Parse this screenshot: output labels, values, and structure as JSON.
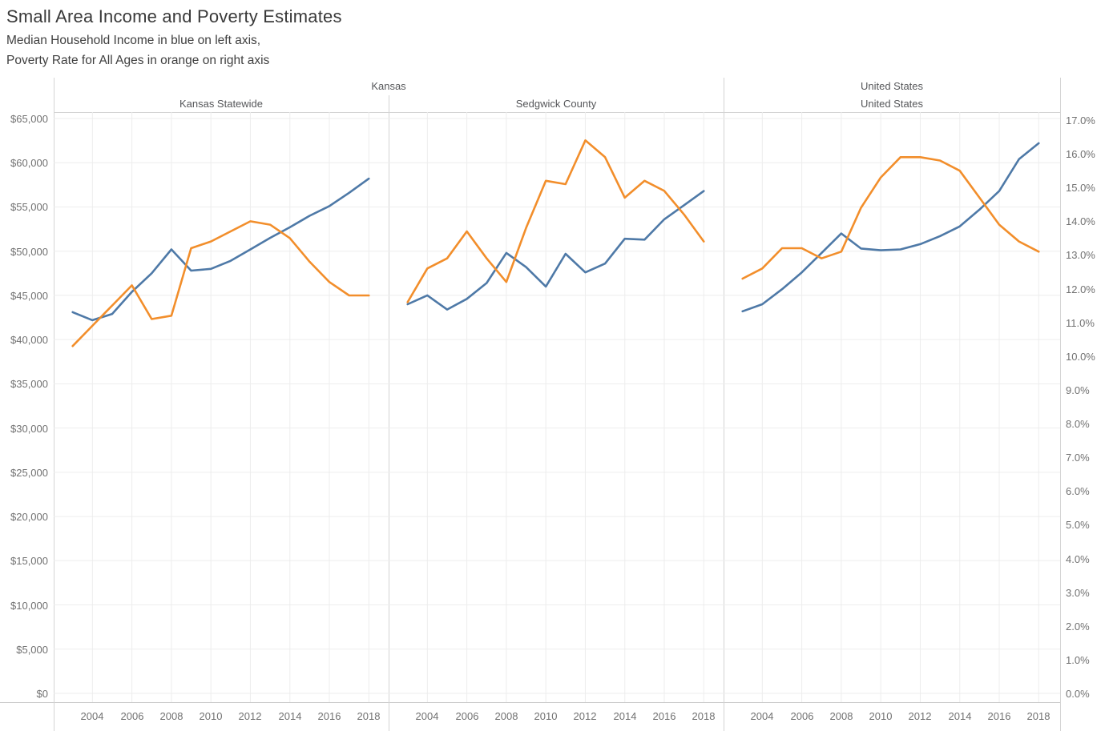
{
  "title": "Small Area Income and Poverty Estimates",
  "subtitle_line1": "Median Household Income in blue on left axis,",
  "subtitle_line2": "Poverty Rate for All Ages in orange on right axis",
  "headers": {
    "groups": [
      "Kansas",
      "United States"
    ],
    "panels": [
      "Kansas Statewide",
      "Sedgwick County",
      "United States"
    ]
  },
  "colors": {
    "income_blue": "#4e79a7",
    "poverty_orange": "#f28e2b",
    "gridline": "#ededed",
    "border": "#d4d4d4",
    "axis_line": "#c9c9c9",
    "tick_text": "#717171"
  },
  "chart_data": {
    "type": "line",
    "title": "Small Area Income and Poverty Estimates",
    "x": [
      2003,
      2004,
      2005,
      2006,
      2007,
      2008,
      2009,
      2010,
      2011,
      2012,
      2013,
      2014,
      2015,
      2016,
      2017,
      2018
    ],
    "x_ticks": [
      2004,
      2006,
      2008,
      2010,
      2012,
      2014,
      2016,
      2018
    ],
    "grid": true,
    "legend": "none",
    "left_axis": {
      "title": "Median Household Income",
      "min": 0,
      "max": 65000,
      "tick_step": 5000,
      "tick_labels": [
        "$0",
        "$5,000",
        "$10,000",
        "$15,000",
        "$20,000",
        "$25,000",
        "$30,000",
        "$35,000",
        "$40,000",
        "$45,000",
        "$50,000",
        "$55,000",
        "$60,000",
        "$65,000"
      ]
    },
    "right_axis": {
      "title": "Poverty Rate for All Ages",
      "min": 0,
      "max": 17,
      "tick_step": 1,
      "tick_labels": [
        "0.0%",
        "1.0%",
        "2.0%",
        "3.0%",
        "4.0%",
        "5.0%",
        "6.0%",
        "7.0%",
        "8.0%",
        "9.0%",
        "10.0%",
        "11.0%",
        "12.0%",
        "13.0%",
        "14.0%",
        "15.0%",
        "16.0%",
        "17.0%"
      ]
    },
    "series_colors": {
      "median_household_income": "#4e79a7",
      "poverty_rate_all_ages": "#f28e2b"
    },
    "panels": [
      {
        "group": "Kansas",
        "title": "Kansas Statewide",
        "median_household_income": [
          43100,
          42200,
          42900,
          45400,
          47500,
          50200,
          47800,
          48000,
          48900,
          50200,
          51500,
          52700,
          54000,
          55100,
          56600,
          58200
        ],
        "poverty_rate_all_ages": [
          10.3,
          10.9,
          11.5,
          12.1,
          11.1,
          11.2,
          13.2,
          13.4,
          13.7,
          14.0,
          13.9,
          13.5,
          12.8,
          12.2,
          11.8,
          11.8
        ]
      },
      {
        "group": "Kansas",
        "title": "Sedgwick County",
        "median_household_income": [
          44000,
          45000,
          43400,
          44600,
          46400,
          49800,
          48200,
          46000,
          49700,
          47600,
          48600,
          51400,
          51300,
          53600,
          55200,
          56800
        ],
        "poverty_rate_all_ages": [
          11.6,
          12.6,
          12.9,
          13.7,
          12.9,
          12.2,
          13.8,
          15.2,
          15.1,
          16.4,
          15.9,
          14.7,
          15.2,
          14.9,
          14.2,
          13.4
        ]
      },
      {
        "group": "United States",
        "title": "United States",
        "median_household_income": [
          43200,
          44000,
          45700,
          47600,
          49800,
          52000,
          50300,
          50100,
          50200,
          50800,
          51700,
          52800,
          54700,
          56800,
          60400,
          62200
        ],
        "poverty_rate_all_ages": [
          12.3,
          12.6,
          13.2,
          13.2,
          12.9,
          13.1,
          14.4,
          15.3,
          15.9,
          15.9,
          15.8,
          15.5,
          14.7,
          13.9,
          13.4,
          13.1
        ]
      }
    ]
  }
}
